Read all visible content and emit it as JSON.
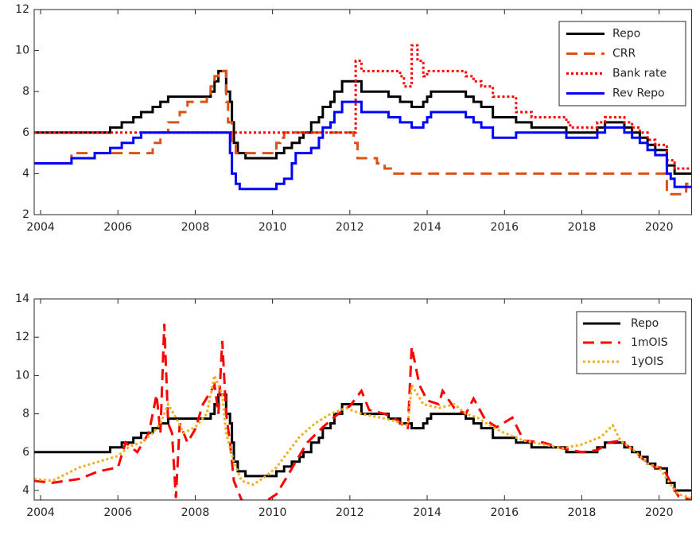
{
  "chart_data": [
    {
      "type": "line",
      "xlim": [
        2003.835,
        2020.84
      ],
      "ylim": [
        2,
        12
      ],
      "xticks": [
        2004,
        2006,
        2008,
        2010,
        2012,
        2014,
        2016,
        2018,
        2020
      ],
      "yticks": [
        2,
        4,
        6,
        8,
        10,
        12
      ],
      "legend": "top-right",
      "series": [
        {
          "name": "Repo",
          "color": "#000000",
          "style": "solid",
          "step": true,
          "x": [
            2003.835,
            2005.8,
            2006.1,
            2006.4,
            2006.6,
            2006.9,
            2007.1,
            2007.3,
            2008.4,
            2008.5,
            2008.6,
            2008.8,
            2008.9,
            2008.95,
            2009.0,
            2009.1,
            2009.3,
            2010.1,
            2010.3,
            2010.5,
            2010.7,
            2010.8,
            2011.0,
            2011.2,
            2011.3,
            2011.5,
            2011.6,
            2011.8,
            2012.3,
            2013.0,
            2013.3,
            2013.6,
            2013.9,
            2014.0,
            2014.1,
            2015.0,
            2015.2,
            2015.4,
            2015.7,
            2016.3,
            2016.7,
            2017.6,
            2018.4,
            2018.6,
            2019.1,
            2019.3,
            2019.5,
            2019.7,
            2019.9,
            2020.2,
            2020.4,
            2020.84
          ],
          "values": [
            6.0,
            6.25,
            6.5,
            6.75,
            7.0,
            7.25,
            7.5,
            7.75,
            8.0,
            8.5,
            9.0,
            8.0,
            7.5,
            6.5,
            5.5,
            5.0,
            4.75,
            5.0,
            5.25,
            5.5,
            5.75,
            6.0,
            6.5,
            6.75,
            7.25,
            7.5,
            8.0,
            8.5,
            8.0,
            7.75,
            7.5,
            7.25,
            7.5,
            7.75,
            8.0,
            7.75,
            7.5,
            7.25,
            6.75,
            6.5,
            6.25,
            6.0,
            6.25,
            6.5,
            6.25,
            6.0,
            5.75,
            5.4,
            5.15,
            4.4,
            4.0,
            4.0
          ]
        },
        {
          "name": "CRR",
          "color": "#d95319",
          "style": "dashed",
          "step": true,
          "x": [
            2003.835,
            2004.8,
            2006.9,
            2007.1,
            2007.3,
            2007.6,
            2007.8,
            2008.3,
            2008.4,
            2008.5,
            2008.6,
            2008.8,
            2008.85,
            2008.95,
            2009.05,
            2010.1,
            2010.2,
            2010.3,
            2012.1,
            2012.2,
            2012.7,
            2012.9,
            2013.1,
            2020.2,
            2020.7,
            2020.84
          ],
          "values": [
            4.5,
            5.0,
            5.5,
            6.0,
            6.5,
            7.0,
            7.5,
            7.75,
            8.25,
            8.75,
            9.0,
            7.5,
            6.5,
            5.5,
            5.0,
            5.5,
            5.75,
            6.0,
            5.5,
            4.75,
            4.5,
            4.25,
            4.0,
            3.0,
            3.5,
            3.5
          ]
        },
        {
          "name": "Bank rate",
          "color": "#ff0000",
          "style": "dotted",
          "step": true,
          "x": [
            2003.835,
            2012.15,
            2012.3,
            2013.3,
            2013.4,
            2013.6,
            2013.75,
            2013.9,
            2014.0,
            2015.0,
            2015.2,
            2015.4,
            2015.7,
            2016.3,
            2016.7,
            2017.6,
            2017.7,
            2018.4,
            2018.6,
            2019.1,
            2019.3,
            2019.5,
            2019.7,
            2019.9,
            2020.2,
            2020.4,
            2020.84
          ],
          "values": [
            6.0,
            9.5,
            9.0,
            8.75,
            8.25,
            10.25,
            9.5,
            8.75,
            9.0,
            8.75,
            8.5,
            8.25,
            7.75,
            7.0,
            6.75,
            6.5,
            6.25,
            6.5,
            6.75,
            6.5,
            6.25,
            6.0,
            5.65,
            5.4,
            4.65,
            4.25,
            4.25
          ]
        },
        {
          "name": "Rev Repo",
          "color": "#0000ff",
          "style": "solid",
          "step": true,
          "x": [
            2003.835,
            2004.8,
            2005.4,
            2005.8,
            2006.1,
            2006.4,
            2006.6,
            2008.9,
            2008.95,
            2009.05,
            2009.15,
            2009.3,
            2010.1,
            2010.3,
            2010.5,
            2010.6,
            2011.0,
            2011.2,
            2011.3,
            2011.5,
            2011.6,
            2011.8,
            2012.3,
            2013.0,
            2013.3,
            2013.6,
            2013.9,
            2014.0,
            2014.1,
            2015.0,
            2015.2,
            2015.4,
            2015.7,
            2016.3,
            2016.7,
            2017.6,
            2018.4,
            2018.6,
            2019.1,
            2019.3,
            2019.5,
            2019.7,
            2019.9,
            2020.2,
            2020.3,
            2020.4,
            2020.84
          ],
          "values": [
            4.5,
            4.75,
            5.0,
            5.25,
            5.5,
            5.75,
            6.0,
            5.0,
            4.0,
            3.5,
            3.25,
            3.25,
            3.5,
            3.75,
            4.5,
            5.0,
            5.25,
            5.75,
            6.25,
            6.5,
            7.0,
            7.5,
            7.0,
            6.75,
            6.5,
            6.25,
            6.5,
            6.75,
            7.0,
            6.75,
            6.5,
            6.25,
            5.75,
            6.0,
            6.0,
            5.75,
            6.0,
            6.25,
            6.0,
            5.75,
            5.5,
            5.15,
            4.9,
            4.0,
            3.75,
            3.35,
            3.35
          ]
        }
      ]
    },
    {
      "type": "line",
      "xlim": [
        2003.835,
        2020.84
      ],
      "ylim": [
        3.5,
        14
      ],
      "xticks": [
        2004,
        2006,
        2008,
        2010,
        2012,
        2014,
        2016,
        2018,
        2020
      ],
      "yticks": [
        4,
        6,
        8,
        10,
        12,
        14
      ],
      "legend": "top-right",
      "series": [
        {
          "name": "Repo",
          "color": "#000000",
          "style": "solid",
          "step": true,
          "x": [
            2003.835,
            2005.8,
            2006.1,
            2006.4,
            2006.6,
            2006.9,
            2007.1,
            2007.3,
            2008.4,
            2008.5,
            2008.6,
            2008.8,
            2008.9,
            2008.95,
            2009.0,
            2009.1,
            2009.3,
            2010.1,
            2010.3,
            2010.5,
            2010.7,
            2010.8,
            2011.0,
            2011.2,
            2011.3,
            2011.5,
            2011.6,
            2011.8,
            2012.3,
            2013.0,
            2013.3,
            2013.6,
            2013.9,
            2014.0,
            2014.1,
            2015.0,
            2015.2,
            2015.4,
            2015.7,
            2016.3,
            2016.7,
            2017.6,
            2018.4,
            2018.6,
            2019.1,
            2019.3,
            2019.5,
            2019.7,
            2019.9,
            2020.2,
            2020.4,
            2020.84
          ],
          "values": [
            6.0,
            6.25,
            6.5,
            6.75,
            7.0,
            7.25,
            7.5,
            7.75,
            8.0,
            8.5,
            9.0,
            8.0,
            7.5,
            6.5,
            5.5,
            5.0,
            4.75,
            5.0,
            5.25,
            5.5,
            5.75,
            6.0,
            6.5,
            6.75,
            7.25,
            7.5,
            8.0,
            8.5,
            8.0,
            7.75,
            7.5,
            7.25,
            7.5,
            7.75,
            8.0,
            7.75,
            7.5,
            7.25,
            6.75,
            6.5,
            6.25,
            6.0,
            6.25,
            6.5,
            6.25,
            6.0,
            5.75,
            5.4,
            5.15,
            4.4,
            4.0,
            4.0
          ]
        },
        {
          "name": "1mOIS",
          "color": "#ff0000",
          "style": "dashed",
          "step": false,
          "x": [
            2003.835,
            2004.3,
            2005.0,
            2005.5,
            2006.0,
            2006.2,
            2006.5,
            2006.8,
            2007.0,
            2007.1,
            2007.2,
            2007.3,
            2007.4,
            2007.5,
            2007.6,
            2007.8,
            2008.0,
            2008.2,
            2008.5,
            2008.6,
            2008.7,
            2008.8,
            2008.9,
            2009.0,
            2009.2,
            2009.5,
            2009.8,
            2010.1,
            2010.4,
            2010.6,
            2010.9,
            2011.3,
            2011.7,
            2012.0,
            2012.3,
            2012.5,
            2012.9,
            2013.2,
            2013.5,
            2013.6,
            2013.8,
            2014.0,
            2014.3,
            2014.4,
            2014.7,
            2015.0,
            2015.2,
            2015.5,
            2015.8,
            2016.2,
            2016.5,
            2017.0,
            2017.5,
            2018.0,
            2018.4,
            2018.7,
            2019.0,
            2019.4,
            2019.6,
            2019.9,
            2020.1,
            2020.3,
            2020.5,
            2020.84
          ],
          "values": [
            4.5,
            4.4,
            4.6,
            5.0,
            5.2,
            6.5,
            6.0,
            7.0,
            9.0,
            7.0,
            12.7,
            7.5,
            7.0,
            3.6,
            7.5,
            6.5,
            7.2,
            8.5,
            9.5,
            8.0,
            11.8,
            8.0,
            6.5,
            4.5,
            3.5,
            3.3,
            3.4,
            3.8,
            4.8,
            5.5,
            6.5,
            7.3,
            8.0,
            8.4,
            9.2,
            8.2,
            8.0,
            7.7,
            7.2,
            11.5,
            9.5,
            8.7,
            8.5,
            9.2,
            8.3,
            8.0,
            8.8,
            7.7,
            7.3,
            7.8,
            6.6,
            6.5,
            6.2,
            6.0,
            6.1,
            6.5,
            6.6,
            6.0,
            5.6,
            5.2,
            5.2,
            4.4,
            3.7,
            3.5
          ]
        },
        {
          "name": "1yOIS",
          "color": "#edb120",
          "style": "dotted",
          "step": false,
          "x": [
            2003.835,
            2004.3,
            2005.0,
            2005.5,
            2006.0,
            2006.3,
            2006.6,
            2006.9,
            2007.1,
            2007.3,
            2007.5,
            2007.7,
            2008.0,
            2008.3,
            2008.5,
            2008.7,
            2008.8,
            2009.0,
            2009.2,
            2009.5,
            2009.8,
            2010.1,
            2010.4,
            2010.7,
            2011.1,
            2011.5,
            2011.9,
            2012.3,
            2012.8,
            2013.2,
            2013.5,
            2013.6,
            2013.9,
            2014.3,
            2014.7,
            2015.0,
            2015.3,
            2015.7,
            2016.0,
            2016.5,
            2017.0,
            2017.5,
            2018.0,
            2018.5,
            2018.8,
            2019.0,
            2019.4,
            2019.7,
            2020.0,
            2020.3,
            2020.5,
            2020.84
          ],
          "values": [
            4.6,
            4.5,
            5.2,
            5.5,
            5.8,
            6.3,
            6.5,
            7.0,
            7.5,
            8.5,
            7.8,
            7.0,
            7.3,
            8.0,
            10.0,
            9.0,
            7.0,
            5.5,
            4.5,
            4.3,
            4.7,
            5.2,
            6.0,
            6.8,
            7.5,
            8.0,
            8.3,
            8.0,
            7.8,
            7.6,
            7.4,
            9.5,
            8.5,
            8.3,
            8.5,
            8.0,
            7.8,
            7.3,
            7.0,
            6.6,
            6.4,
            6.2,
            6.4,
            6.8,
            7.4,
            6.6,
            6.0,
            5.4,
            5.2,
            4.3,
            3.8,
            3.6
          ]
        }
      ]
    }
  ]
}
